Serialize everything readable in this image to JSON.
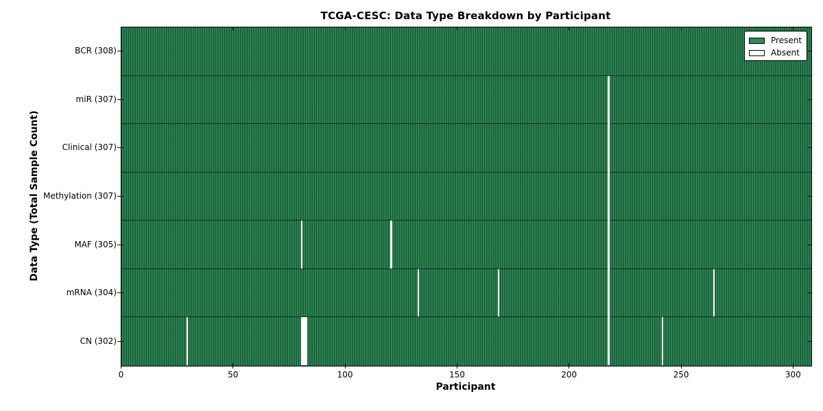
{
  "chart_data": {
    "type": "heatmap",
    "title": "TCGA-CESC: Data Type Breakdown by Participant",
    "xlabel": "Participant",
    "ylabel": "Data Type (Total Sample Count)",
    "n_participants": 308,
    "x_ticks": [
      0,
      50,
      100,
      150,
      200,
      250,
      300
    ],
    "legend_position": "upper right",
    "grid": false,
    "legend": [
      {
        "label": "Present",
        "color": "#2e8b57"
      },
      {
        "label": "Absent",
        "color": "#ffffff"
      }
    ],
    "colors": {
      "present_fill": "#2e8b57",
      "present_edge": "#1a5435",
      "absent_fill": "#ffffff",
      "row_separator": "#0d2d1c",
      "axis": "#000000",
      "background": "#ffffff"
    },
    "rows": [
      {
        "data_type": "BCR",
        "label": "BCR (308)",
        "total": 308,
        "absent": []
      },
      {
        "data_type": "miR",
        "label": "miR (307)",
        "total": 307,
        "absent": [
          217
        ]
      },
      {
        "data_type": "Clinical",
        "label": "Clinical (307)",
        "total": 307,
        "absent": [
          217
        ]
      },
      {
        "data_type": "Methylation",
        "label": "Methylation (307)",
        "total": 307,
        "absent": [
          217
        ]
      },
      {
        "data_type": "MAF",
        "label": "MAF (305)",
        "total": 305,
        "absent": [
          80,
          120,
          217
        ]
      },
      {
        "data_type": "mRNA",
        "label": "mRNA (304)",
        "total": 304,
        "absent": [
          132,
          168,
          217,
          264
        ]
      },
      {
        "data_type": "CN",
        "label": "CN (302)",
        "total": 302,
        "absent": [
          29,
          80,
          81,
          82,
          217,
          241
        ]
      }
    ]
  }
}
